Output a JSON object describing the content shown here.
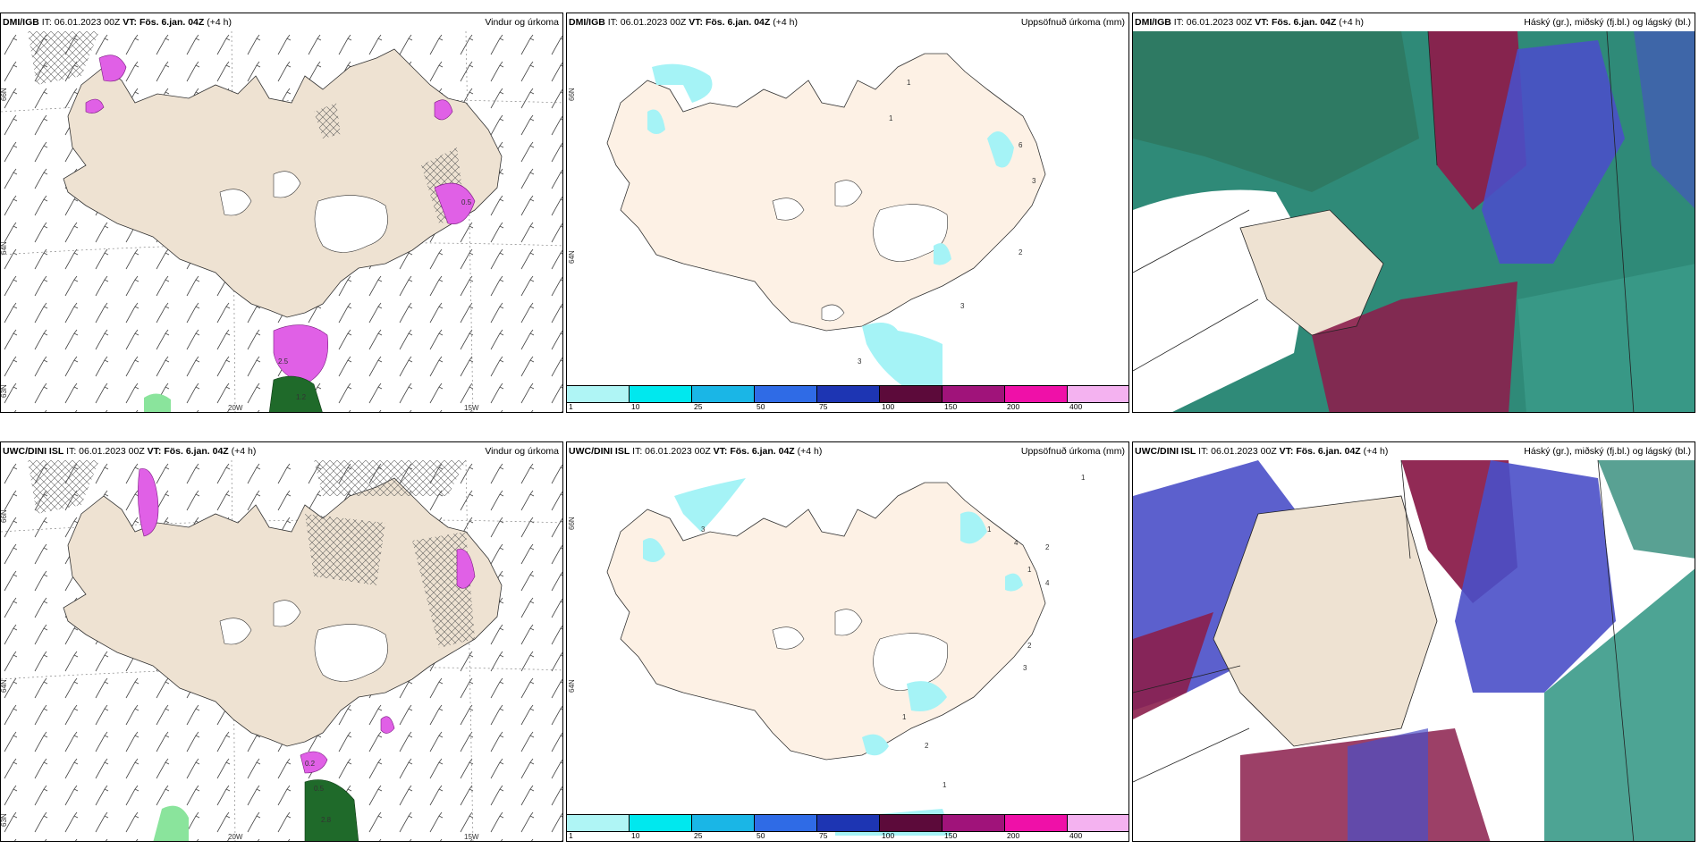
{
  "panels": [
    {
      "model": "DMI/IGB",
      "it": "IT: 06.01.2023 00Z",
      "vt_label": "VT:",
      "vt_value": "Fös. 6.jan. 04Z",
      "lead": "(+4 h)",
      "field": "Vindur og úrkoma",
      "map_labels": [
        "20W",
        "15W",
        "66N",
        "64N",
        "63N"
      ],
      "precip_values": [
        "0.5",
        "2.5",
        "1.2"
      ]
    },
    {
      "model": "DMI/IGB",
      "it": "IT: 06.01.2023 00Z",
      "vt_label": "VT:",
      "vt_value": "Fös. 6.jan. 04Z",
      "lead": "(+4 h)",
      "field": "Uppsöfnuð úrkoma (mm)",
      "map_labels": [
        "66N",
        "64N"
      ],
      "precip_values": [
        "1",
        "1",
        "6",
        "3",
        "2",
        "3",
        "3"
      ]
    },
    {
      "model": "DMI/IGB",
      "it": "IT: 06.01.2023 00Z",
      "vt_label": "VT:",
      "vt_value": "Fös. 6.jan. 04Z",
      "lead": "(+4 h)",
      "field": "Háský (gr.), miðský (fj.bl.) og lágský (bl.)"
    },
    {
      "model": "UWC/DINI ISL",
      "it": "IT: 06.01.2023 00Z",
      "vt_label": "VT:",
      "vt_value": "Fös. 6.jan. 04Z",
      "lead": "(+4 h)",
      "field": "Vindur og úrkoma",
      "map_labels": [
        "20W",
        "15W",
        "66N",
        "64N",
        "63N"
      ],
      "precip_values": [
        "0.2",
        "0.5",
        "2.8"
      ]
    },
    {
      "model": "UWC/DINI ISL",
      "it": "IT: 06.01.2023 00Z",
      "vt_label": "VT:",
      "vt_value": "Fös. 6.jan. 04Z",
      "lead": "(+4 h)",
      "field": "Uppsöfnuð úrkoma (mm)",
      "map_labels": [
        "66N",
        "64N"
      ],
      "precip_values": [
        "1",
        "3",
        "1",
        "4",
        "2",
        "1",
        "4",
        "2",
        "3",
        "1",
        "2",
        "1",
        "2"
      ]
    },
    {
      "model": "UWC/DINI ISL",
      "it": "IT: 06.01.2023 00Z",
      "vt_label": "VT:",
      "vt_value": "Fös. 6.jan. 04Z",
      "lead": "(+4 h)",
      "field": "Háský (gr.), miðský (fj.bl.) og lágský (bl.)"
    }
  ],
  "legend": {
    "labels": [
      "1",
      "10",
      "25",
      "50",
      "75",
      "100",
      "150",
      "200",
      "400"
    ],
    "colors": [
      "#aff5f5",
      "#00e8ee",
      "#1ab6e6",
      "#2f6be6",
      "#1d35b3",
      "#5c0a3a",
      "#a0137a",
      "#ef10a8",
      "#f4b2f0"
    ]
  },
  "colors": {
    "land": "#eee2d2",
    "land_precip": "#fdf1e5",
    "glacier": "#ffffff",
    "precip_pink": "#e060e6",
    "precip_green": "#1f6a2a",
    "precip_cyan": "#a5f3f6",
    "cloud_high": "#37a07a",
    "cloud_mid": "#8b1f4c",
    "cloud_low": "#4a4fc8"
  }
}
